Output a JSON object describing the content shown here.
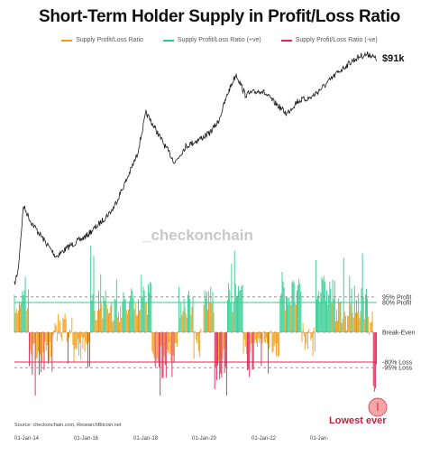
{
  "chart_data": {
    "type": "line",
    "title": "Short-Term Holder Supply in Profit/Loss Ratio",
    "legend_placement": "top",
    "series": [
      {
        "name": "Supply Profit/Loss Ratio",
        "color": "#f39c12"
      },
      {
        "name": "Supply Profit/Loss Ratio (+ve)",
        "color": "#2ecc8f"
      },
      {
        "name": "Supply Profit/Loss Ratio (-ve)",
        "color": "#e0244f"
      }
    ],
    "price_label": "$91k",
    "reference_lines": [
      {
        "label": "95% Profit",
        "value": 0.95
      },
      {
        "label": "80% Profit",
        "value": 0.8
      },
      {
        "label": "Break-Even",
        "value": 0.0
      },
      {
        "label": "-80% Loss",
        "value": -0.8
      },
      {
        "label": "-95% Loss",
        "value": -0.95
      }
    ],
    "x_ticks": [
      "01-Jan-14",
      "01-Jan-16",
      "01-Jan-18",
      "01-Jan-20",
      "01-Jan-22",
      "01-Jan-"
    ],
    "annotation": "Lowest ever",
    "watermark": "_checkonchain",
    "source": "Source: checkonchain.com, ResearchBitcoin.net",
    "grid": false
  }
}
